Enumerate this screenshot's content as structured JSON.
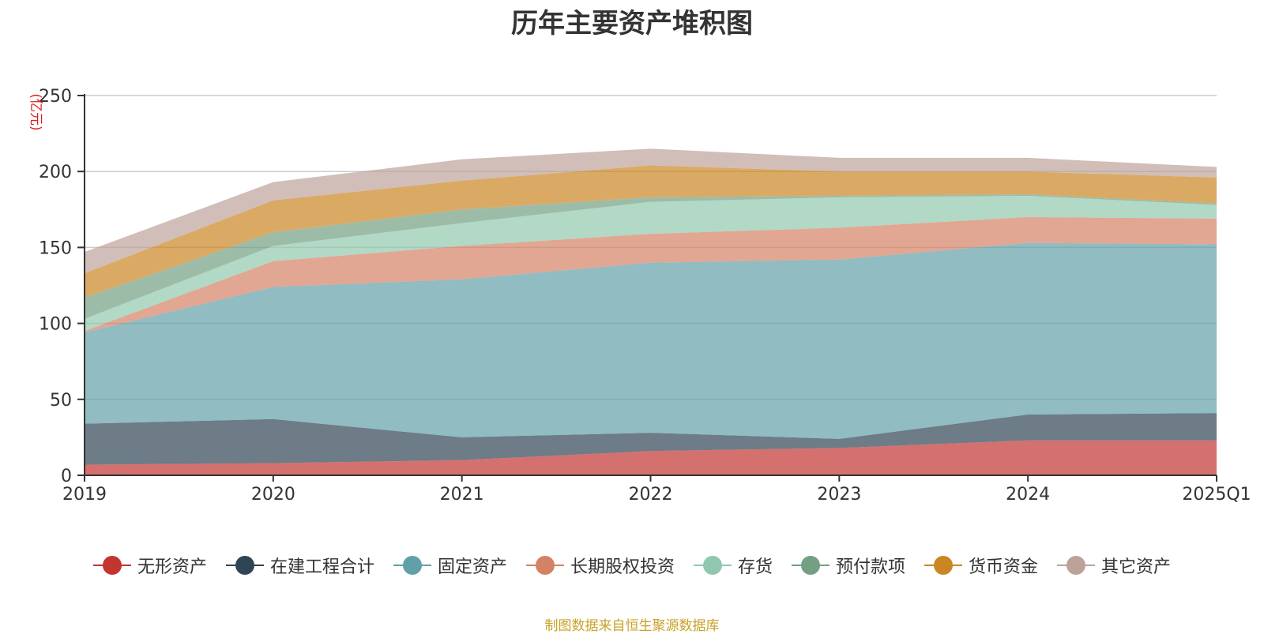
{
  "chart_data": {
    "type": "area",
    "stacked": true,
    "title": "历年主要资产堆积图",
    "unit_label": "(亿元)",
    "categories": [
      "2019",
      "2020",
      "2021",
      "2022",
      "2023",
      "2024",
      "2025Q1"
    ],
    "y_ticks": [
      "0",
      "50",
      "100",
      "150",
      "200",
      "250"
    ],
    "ylim": [
      0,
      250
    ],
    "grid": true,
    "legend_position": "bottom",
    "series": [
      {
        "name": "无形资产",
        "color": "#c23531",
        "values": [
          7,
          8,
          10,
          16,
          18,
          23,
          23
        ]
      },
      {
        "name": "在建工程合计",
        "color": "#2f4554",
        "values": [
          27,
          29,
          15,
          12,
          6,
          17,
          18
        ]
      },
      {
        "name": "固定资产",
        "color": "#61a0a8",
        "values": [
          60,
          87,
          104,
          112,
          118,
          113,
          111
        ]
      },
      {
        "name": "长期股权投资",
        "color": "#d48265",
        "values": [
          1,
          17,
          22,
          19,
          21,
          17,
          17
        ]
      },
      {
        "name": "存货",
        "color": "#91c7ae",
        "values": [
          8,
          10,
          15,
          21,
          20,
          14,
          9
        ]
      },
      {
        "name": "预付款项",
        "color": "#749f83",
        "values": [
          14,
          9,
          9,
          3,
          1,
          1,
          1
        ]
      },
      {
        "name": "货币资金",
        "color": "#ca8622",
        "values": [
          16,
          21,
          19,
          21,
          16,
          15,
          17
        ]
      },
      {
        "name": "其它资产",
        "color": "#bda29a",
        "values": [
          14,
          12,
          14,
          11,
          9,
          9,
          7
        ]
      }
    ]
  },
  "footer": "制图数据来自恒生聚源数据库"
}
